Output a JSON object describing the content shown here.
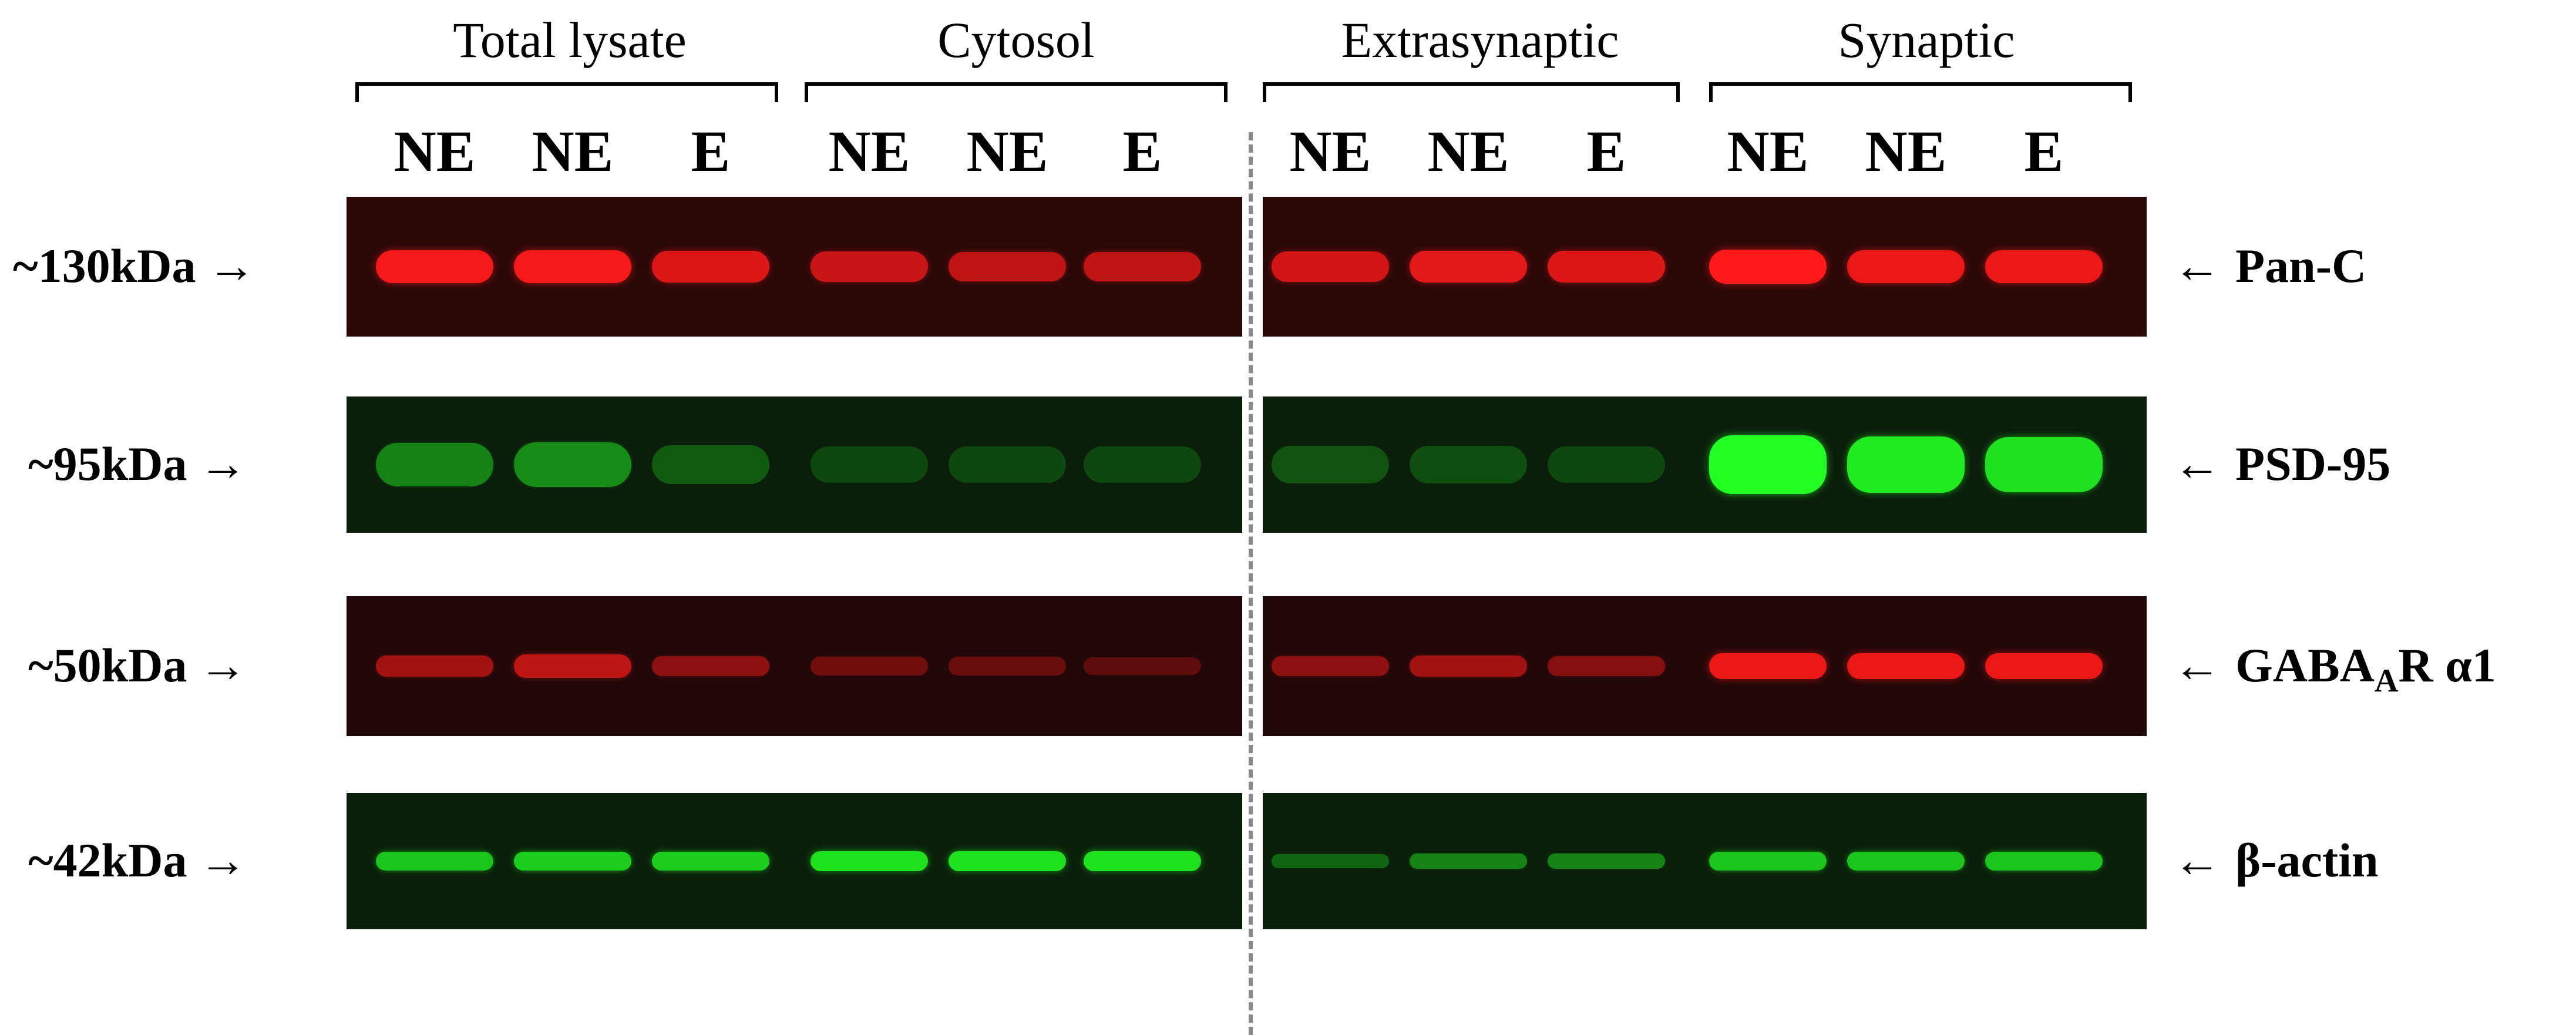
{
  "groups": [
    {
      "label": "Total lysate"
    },
    {
      "label": "Cytosol"
    },
    {
      "label": "Extrasynaptic"
    },
    {
      "label": "Synaptic"
    }
  ],
  "lanes": [
    "NE",
    "NE",
    "E",
    "NE",
    "NE",
    "E",
    "NE",
    "NE",
    "E",
    "NE",
    "NE",
    "E"
  ],
  "rows": [
    {
      "mw": "~130kDa",
      "protein": "Pan-C",
      "color": "#ff1a1a",
      "bg": "#2a0808",
      "intensity": [
        0.95,
        0.95,
        0.8,
        0.7,
        0.65,
        0.65,
        0.75,
        0.85,
        0.8,
        1.0,
        0.9,
        0.9
      ]
    },
    {
      "mw": "~95kDa",
      "protein": "PSD-95",
      "color": "#22ff22",
      "bg": "#0b1d0b",
      "intensity": [
        0.35,
        0.4,
        0.15,
        0.05,
        0.05,
        0.05,
        0.1,
        0.08,
        0.05,
        1.0,
        0.9,
        0.85
      ]
    },
    {
      "mw": "~50kDa",
      "protein": "GABA",
      "protein_sub": "A",
      "protein_suffix": "R α1",
      "color": "#ff1a1a",
      "bg": "#220808",
      "intensity": [
        0.5,
        0.65,
        0.4,
        0.25,
        0.2,
        0.15,
        0.4,
        0.5,
        0.35,
        0.9,
        0.9,
        0.9
      ]
    },
    {
      "mw": "~42kDa",
      "protein": "β-actin",
      "color": "#22ff22",
      "bg": "#0a1f0a",
      "intensity": [
        0.7,
        0.75,
        0.75,
        0.85,
        0.85,
        0.85,
        0.2,
        0.35,
        0.35,
        0.7,
        0.7,
        0.7
      ]
    }
  ],
  "arrow_right": "→",
  "arrow_left": "←"
}
